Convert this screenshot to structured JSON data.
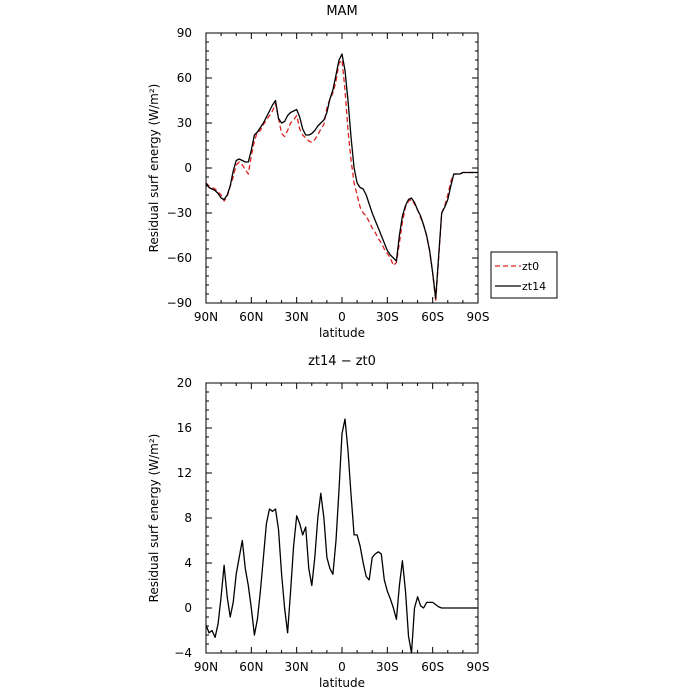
{
  "chart_data": [
    {
      "type": "line",
      "title": "MAM",
      "xlabel": "latitude",
      "ylabel": "Residual surf energy (W/m²)",
      "xlim": [
        90,
        -90
      ],
      "ylim": [
        -90,
        90
      ],
      "x_ticks": [
        90,
        60,
        30,
        0,
        -30,
        -60,
        -90
      ],
      "x_tick_labels": [
        "90N",
        "60N",
        "30N",
        "0",
        "30S",
        "60S",
        "90S"
      ],
      "y_ticks": [
        -90,
        -60,
        -30,
        0,
        30,
        60,
        90
      ],
      "y_tick_labels": [
        "−90",
        "−60",
        "−30",
        "0",
        "30",
        "60",
        "90"
      ],
      "legend": "outside-right",
      "series": [
        {
          "name": "zt0",
          "color": "#dd2222",
          "dash": "dashed",
          "x": [
            90,
            88,
            86,
            84,
            82,
            80,
            78,
            76,
            74,
            72,
            70,
            68,
            66,
            64,
            62,
            60,
            58,
            56,
            54,
            52,
            50,
            48,
            46,
            44,
            42,
            40,
            38,
            36,
            34,
            32,
            30,
            28,
            26,
            24,
            22,
            20,
            18,
            16,
            14,
            12,
            10,
            8,
            6,
            4,
            2,
            0,
            -2,
            -4,
            -6,
            -8,
            -10,
            -12,
            -14,
            -16,
            -18,
            -20,
            -22,
            -24,
            -26,
            -28,
            -30,
            -32,
            -34,
            -36,
            -38,
            -40,
            -42,
            -44,
            -46,
            -48,
            -50,
            -52,
            -54,
            -56,
            -58,
            -60,
            -62,
            -64,
            -66,
            -68,
            -70,
            -72,
            -74,
            -76,
            -78,
            -80,
            -82,
            -84,
            -86,
            -88,
            -90
          ],
          "values": [
            -10,
            -12,
            -13,
            -14,
            -16,
            -18,
            -22,
            -19,
            -12,
            -6,
            2,
            4,
            2,
            -1,
            -4,
            8,
            18,
            24,
            25,
            29,
            32,
            35,
            38,
            43,
            33,
            23,
            21,
            25,
            30,
            32,
            35,
            26,
            22,
            20,
            18,
            17,
            19,
            22,
            26,
            29,
            40,
            46,
            50,
            58,
            70,
            72,
            52,
            25,
            5,
            -10,
            -18,
            -26,
            -30,
            -32,
            -36,
            -40,
            -43,
            -47,
            -50,
            -54,
            -57,
            -60,
            -65,
            -63,
            -50,
            -36,
            -26,
            -22,
            -21,
            -24,
            -28,
            -33,
            -38,
            -45,
            -55,
            -70,
            -89,
            -60,
            -30,
            -25,
            -18,
            -9,
            -4,
            -4,
            -4,
            -3,
            -3,
            -3,
            -3,
            -3,
            -3
          ]
        },
        {
          "name": "zt14",
          "color": "#000000",
          "dash": "solid",
          "x": [
            90,
            88,
            86,
            84,
            82,
            80,
            78,
            76,
            74,
            72,
            70,
            68,
            66,
            64,
            62,
            60,
            58,
            56,
            54,
            52,
            50,
            48,
            46,
            44,
            42,
            40,
            38,
            36,
            34,
            32,
            30,
            28,
            26,
            24,
            22,
            20,
            18,
            16,
            14,
            12,
            10,
            8,
            6,
            4,
            2,
            0,
            -2,
            -4,
            -6,
            -8,
            -10,
            -12,
            -14,
            -16,
            -18,
            -20,
            -22,
            -24,
            -26,
            -28,
            -30,
            -32,
            -34,
            -36,
            -38,
            -40,
            -42,
            -44,
            -46,
            -48,
            -50,
            -52,
            -54,
            -56,
            -58,
            -60,
            -62,
            -64,
            -66,
            -68,
            -70,
            -72,
            -74,
            -76,
            -78,
            -80,
            -82,
            -84,
            -86,
            -88,
            -90
          ],
          "values": [
            -10,
            -13,
            -14,
            -15,
            -17,
            -20,
            -21,
            -18,
            -12,
            -2,
            5,
            6,
            5,
            4,
            4,
            12,
            22,
            24,
            27,
            30,
            34,
            38,
            42,
            45,
            33,
            30,
            31,
            35,
            37,
            38,
            39,
            34,
            26,
            22,
            22,
            23,
            25,
            28,
            30,
            32,
            37,
            46,
            52,
            62,
            72,
            76,
            65,
            45,
            20,
            0,
            -10,
            -13,
            -14,
            -18,
            -24,
            -30,
            -35,
            -40,
            -45,
            -50,
            -55,
            -58,
            -60,
            -62,
            -45,
            -32,
            -25,
            -21,
            -20,
            -23,
            -28,
            -32,
            -38,
            -45,
            -55,
            -70,
            -87,
            -58,
            -30,
            -26,
            -21,
            -12,
            -4,
            -4,
            -4,
            -3,
            -3,
            -3,
            -3,
            -3,
            -3
          ]
        }
      ]
    },
    {
      "type": "line",
      "title": "zt14 − zt0",
      "xlabel": "latitude",
      "ylabel": "Residual surf energy (W/m²)",
      "xlim": [
        90,
        -90
      ],
      "ylim": [
        -4,
        20
      ],
      "x_ticks": [
        90,
        60,
        30,
        0,
        -30,
        -60,
        -90
      ],
      "x_tick_labels": [
        "90N",
        "60N",
        "30N",
        "0",
        "30S",
        "60S",
        "90S"
      ],
      "y_ticks": [
        -4,
        0,
        4,
        8,
        12,
        16,
        20
      ],
      "y_tick_labels": [
        "−4",
        "0",
        "4",
        "8",
        "12",
        "16",
        "20"
      ],
      "series": [
        {
          "color": "#000000",
          "x": [
            90,
            88,
            86,
            84,
            82,
            80,
            78,
            76,
            74,
            72,
            70,
            68,
            66,
            64,
            62,
            60,
            58,
            56,
            54,
            52,
            50,
            48,
            46,
            44,
            42,
            40,
            38,
            36,
            34,
            32,
            30,
            28,
            26,
            24,
            22,
            20,
            18,
            16,
            14,
            12,
            10,
            8,
            6,
            4,
            2,
            0,
            -2,
            -4,
            -6,
            -8,
            -10,
            -12,
            -14,
            -16,
            -18,
            -20,
            -22,
            -24,
            -26,
            -28,
            -30,
            -32,
            -34,
            -36,
            -38,
            -40,
            -42,
            -44,
            -46,
            -48,
            -50,
            -52,
            -54,
            -56,
            -58,
            -60,
            -62,
            -64,
            -66,
            -68,
            -70,
            -72,
            -74,
            -76,
            -78,
            -80,
            -82,
            -84,
            -86,
            -88,
            -90
          ],
          "values": [
            -1.5,
            -2.2,
            -2.0,
            -2.6,
            -1.4,
            1.0,
            3.8,
            1.0,
            -0.8,
            0.5,
            3.0,
            4.5,
            6.0,
            3.5,
            2.0,
            0.0,
            -2.4,
            -1.0,
            1.5,
            4.5,
            7.5,
            8.8,
            8.6,
            8.8,
            7.0,
            3.0,
            0.0,
            -2.2,
            1.5,
            5.5,
            8.2,
            7.5,
            6.5,
            7.2,
            3.5,
            2.0,
            4.5,
            8.0,
            10.2,
            8.0,
            4.5,
            3.5,
            3.0,
            6.0,
            10.5,
            15.5,
            16.8,
            14.0,
            10.0,
            6.5,
            6.5,
            5.5,
            4.0,
            2.8,
            2.5,
            4.5,
            4.8,
            5.0,
            4.8,
            2.5,
            1.5,
            0.8,
            0.0,
            -1.0,
            2.0,
            4.2,
            1.5,
            -2.5,
            -4.0,
            0.0,
            1.0,
            0.2,
            0.0,
            0.5,
            0.5,
            0.5,
            0.3,
            0.1,
            0.0,
            0.0,
            0.0,
            0.0,
            0.0,
            0.0,
            0.0,
            0.0,
            0.0,
            0.0,
            0.0,
            0.0,
            0.0
          ]
        }
      ]
    }
  ]
}
